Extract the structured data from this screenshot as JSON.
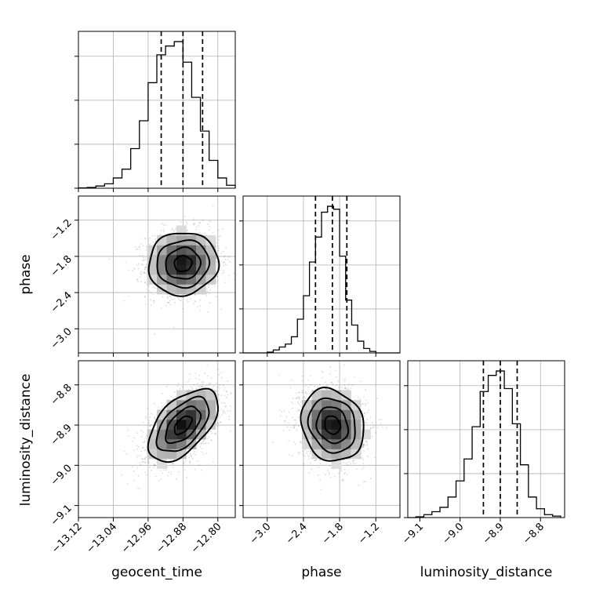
{
  "chart_data": {
    "type": "corner",
    "parameters": [
      {
        "name": "geocent_time",
        "label": "geocent_time",
        "range": [
          -13.12,
          -12.76
        ],
        "ticks": [
          -13.12,
          -13.04,
          -12.96,
          -12.88,
          -12.8
        ],
        "tick_labels": [
          "−13.12",
          "−13.04",
          "−12.96",
          "−12.88",
          "−12.80"
        ],
        "quantiles": [
          -12.93,
          -12.88,
          -12.835
        ],
        "hist_bins": [
          -13.12,
          -13.1,
          -13.08,
          -13.06,
          -13.04,
          -13.02,
          -13.0,
          -12.98,
          -12.96,
          -12.94,
          -12.92,
          -12.9,
          -12.88,
          -12.86,
          -12.84,
          -12.82,
          -12.8,
          -12.78,
          -12.76
        ],
        "hist_counts": [
          0.002,
          0.005,
          0.015,
          0.03,
          0.07,
          0.13,
          0.27,
          0.46,
          0.72,
          0.91,
          0.97,
          1.0,
          0.86,
          0.62,
          0.39,
          0.19,
          0.07,
          0.02
        ]
      },
      {
        "name": "phase",
        "label": "phase",
        "range": [
          -3.4,
          -0.8
        ],
        "ticks": [
          -3.0,
          -2.4,
          -1.8,
          -1.2
        ],
        "tick_labels": [
          "−3.0",
          "−2.4",
          "−1.8",
          "−1.2"
        ],
        "quantiles": [
          -2.2,
          -1.92,
          -1.68
        ],
        "hist_bins": [
          -3.4,
          -3.3,
          -3.2,
          -3.1,
          -3.0,
          -2.9,
          -2.8,
          -2.7,
          -2.6,
          -2.5,
          -2.4,
          -2.3,
          -2.2,
          -2.1,
          -2.0,
          -1.9,
          -1.8,
          -1.7,
          -1.6,
          -1.5,
          -1.4,
          -1.3,
          -1.2,
          -1.1,
          -1.0,
          -0.9,
          -0.8
        ],
        "hist_counts": [
          0.0,
          0.0,
          0.0,
          0.0,
          0.005,
          0.02,
          0.04,
          0.06,
          0.11,
          0.23,
          0.39,
          0.62,
          0.79,
          0.96,
          1.0,
          0.98,
          0.66,
          0.36,
          0.19,
          0.08,
          0.03,
          0.01,
          0.0,
          0.0,
          0.0,
          0.0
        ]
      },
      {
        "name": "luminosity_distance",
        "label": "luminosity_distance",
        "range": [
          -9.13,
          -8.74
        ],
        "ticks": [
          -9.1,
          -9.0,
          -8.9,
          -8.8
        ],
        "tick_labels": [
          "−9.1",
          "−9.0",
          "−8.9",
          "−8.8"
        ],
        "quantiles": [
          -8.942,
          -8.9,
          -8.858
        ],
        "hist_bins": [
          -9.13,
          -9.11,
          -9.09,
          -9.07,
          -9.05,
          -9.03,
          -9.01,
          -8.99,
          -8.97,
          -8.95,
          -8.93,
          -8.91,
          -8.89,
          -8.87,
          -8.85,
          -8.83,
          -8.81,
          -8.79,
          -8.77,
          -8.75
        ],
        "hist_counts": [
          0.0,
          0.005,
          0.02,
          0.04,
          0.07,
          0.14,
          0.25,
          0.4,
          0.62,
          0.86,
          0.97,
          1.0,
          0.88,
          0.64,
          0.36,
          0.14,
          0.06,
          0.02,
          0.01
        ]
      }
    ],
    "pairs": [
      {
        "x": "geocent_time",
        "y": "phase",
        "center": [
          -12.88,
          -1.92
        ],
        "sigma": [
          0.04,
          0.26
        ],
        "correlation": 0.05
      },
      {
        "x": "geocent_time",
        "y": "luminosity_distance",
        "center": [
          -12.88,
          -8.9
        ],
        "sigma": [
          0.04,
          0.045
        ],
        "correlation": 0.55
      },
      {
        "x": "phase",
        "y": "luminosity_distance",
        "center": [
          -1.92,
          -8.9
        ],
        "sigma": [
          0.26,
          0.045
        ],
        "correlation": -0.15
      }
    ],
    "contour_levels_sigma": [
      0.5,
      1.0,
      1.5,
      2.0
    ],
    "grid": true,
    "quantile_lines": "dashed"
  }
}
